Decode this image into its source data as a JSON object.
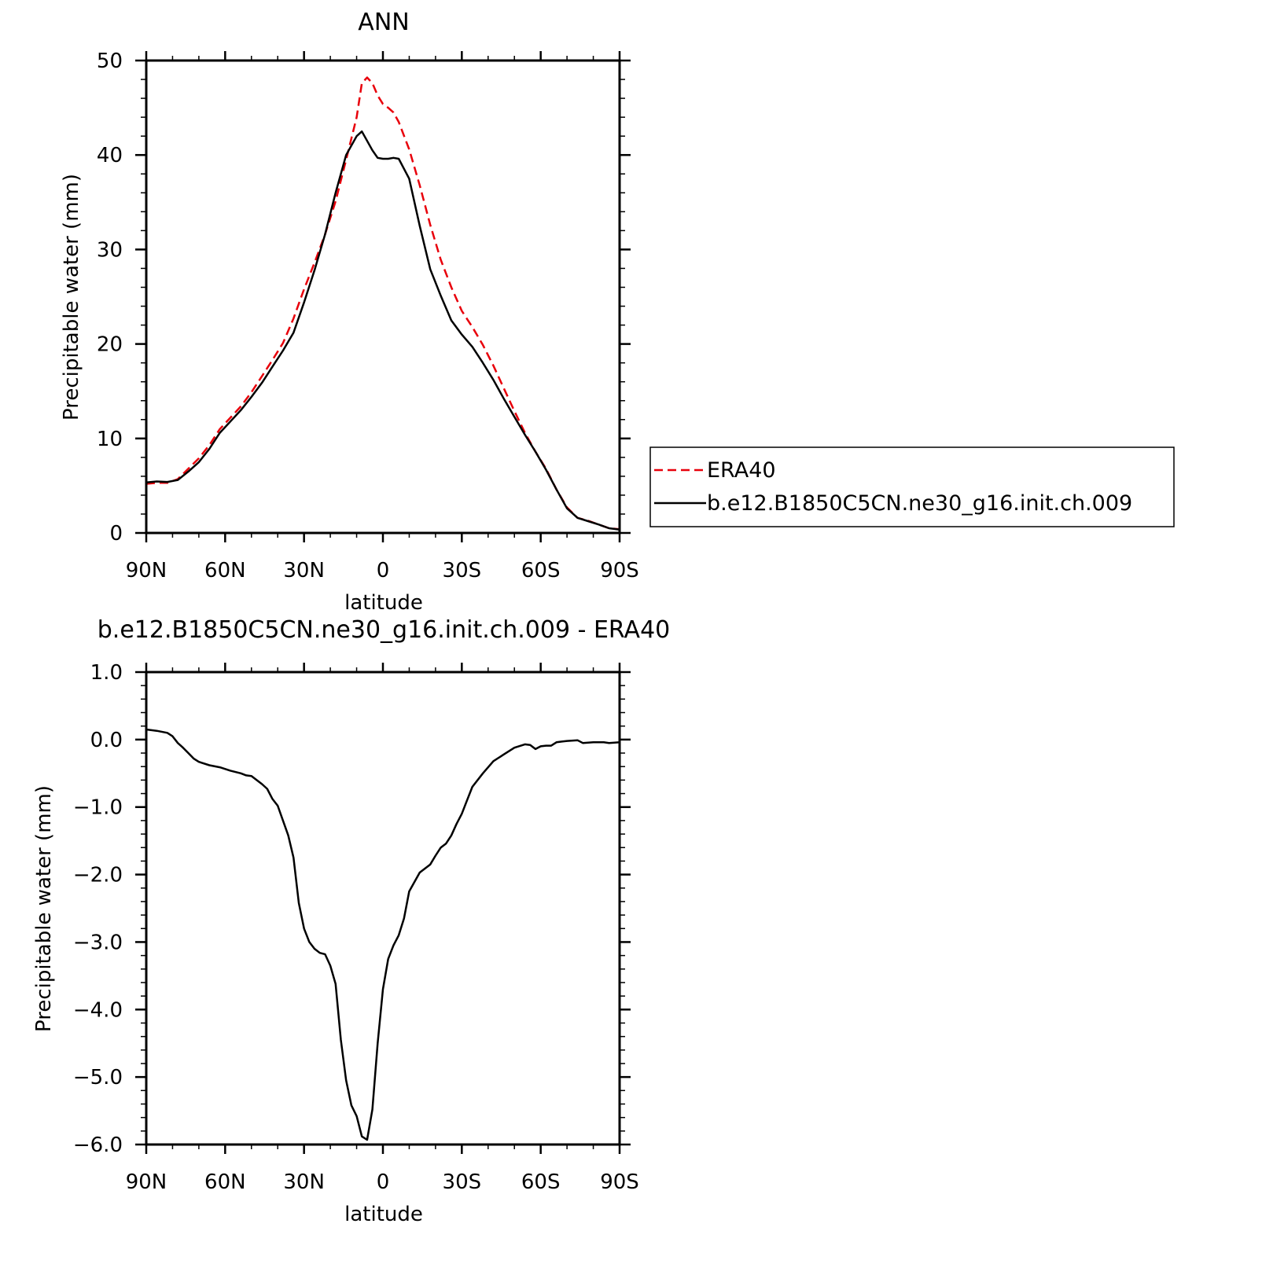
{
  "chart_data": [
    {
      "type": "line",
      "title": "ANN",
      "xlabel": "latitude",
      "ylabel": "Precipitable water (mm)",
      "xlim": [
        90,
        -90
      ],
      "ylim": [
        0,
        50
      ],
      "x_tick_values": [
        90,
        60,
        30,
        0,
        -30,
        -60,
        -90
      ],
      "x_tick_labels": [
        "90N",
        "60N",
        "30N",
        "0",
        "30S",
        "60S",
        "90S"
      ],
      "y_tick_values": [
        0,
        10,
        20,
        30,
        40,
        50
      ],
      "y_tick_labels": [
        "0",
        "10",
        "20",
        "30",
        "40",
        "50"
      ],
      "grid": false,
      "legend_position": "right",
      "series": [
        {
          "name": "ERA40",
          "color": "#e8000b",
          "dash": "dashed",
          "x": [
            90,
            86,
            82,
            78,
            74,
            70,
            66,
            62,
            58,
            54,
            50,
            46,
            42,
            38,
            34,
            30,
            26,
            22,
            18,
            14,
            10,
            8,
            6,
            4,
            2,
            0,
            -2,
            -4,
            -6,
            -10,
            -14,
            -18,
            -22,
            -26,
            -30,
            -34,
            -38,
            -42,
            -46,
            -50,
            -54,
            -58,
            -62,
            -66,
            -70,
            -74,
            -78,
            -82,
            -86,
            -90
          ],
          "values": [
            5.2,
            5.3,
            5.3,
            5.7,
            6.8,
            7.9,
            9.3,
            11.0,
            12.2,
            13.4,
            14.9,
            16.6,
            18.3,
            20.1,
            22.7,
            25.8,
            28.6,
            31.6,
            35.1,
            39.5,
            44.0,
            47.6,
            48.2,
            47.6,
            46.3,
            45.4,
            45.0,
            44.5,
            43.5,
            40.6,
            36.8,
            32.6,
            28.9,
            26.0,
            23.5,
            21.8,
            19.9,
            17.7,
            15.3,
            12.9,
            10.6,
            8.6,
            6.8,
            4.6,
            2.7,
            1.6,
            1.3,
            0.9,
            0.5,
            0.4
          ]
        },
        {
          "name": "b.e12.B1850C5CN.ne30_g16.init.ch.009",
          "color": "#000000",
          "dash": "solid",
          "x": [
            90,
            86,
            82,
            78,
            74,
            70,
            66,
            62,
            58,
            54,
            50,
            46,
            42,
            38,
            34,
            30,
            26,
            22,
            18,
            14,
            10,
            8,
            6,
            4,
            2,
            0,
            -2,
            -4,
            -6,
            -10,
            -14,
            -18,
            -22,
            -26,
            -30,
            -34,
            -38,
            -42,
            -46,
            -50,
            -54,
            -58,
            -62,
            -66,
            -70,
            -74,
            -78,
            -82,
            -86,
            -90
          ],
          "values": [
            5.35,
            5.45,
            5.4,
            5.6,
            6.5,
            7.5,
            8.9,
            10.6,
            11.8,
            13.0,
            14.4,
            15.9,
            17.6,
            19.3,
            21.2,
            24.4,
            27.8,
            31.6,
            36.0,
            40.0,
            42.0,
            42.5,
            41.5,
            40.5,
            39.7,
            39.6,
            39.6,
            39.7,
            39.6,
            37.5,
            32.5,
            27.9,
            25.1,
            22.5,
            21.0,
            19.7,
            18.0,
            16.2,
            14.2,
            12.3,
            10.4,
            8.6,
            6.7,
            4.6,
            2.6,
            1.6,
            1.25,
            0.9,
            0.5,
            0.35
          ]
        }
      ]
    },
    {
      "type": "line",
      "title": "b.e12.B1850C5CN.ne30_g16.init.ch.009 - ERA40",
      "xlabel": "latitude",
      "ylabel": "Precipitable water (mm)",
      "xlim": [
        90,
        -90
      ],
      "ylim": [
        -6.0,
        1.0
      ],
      "x_tick_values": [
        90,
        60,
        30,
        0,
        -30,
        -60,
        -90
      ],
      "x_tick_labels": [
        "90N",
        "60N",
        "30N",
        "0",
        "30S",
        "60S",
        "90S"
      ],
      "y_tick_values": [
        1.0,
        0.0,
        -1.0,
        -2.0,
        -3.0,
        -4.0,
        -5.0,
        -6.0
      ],
      "y_tick_labels": [
        "1.0",
        "0.0",
        "−1.0",
        "−2.0",
        "−3.0",
        "−4.0",
        "−5.0",
        "−6.0"
      ],
      "grid": false,
      "series": [
        {
          "color": "#000000",
          "dash": "solid",
          "x": [
            90,
            86,
            82,
            80,
            78,
            76,
            74,
            72,
            70,
            66,
            62,
            58,
            54,
            52,
            50,
            48,
            46,
            44,
            42,
            40,
            38,
            36,
            34,
            32,
            30,
            28,
            26,
            24,
            22,
            20,
            18,
            16,
            14,
            12,
            10,
            8,
            6,
            4,
            2,
            0,
            -2,
            -4,
            -6,
            -8,
            -10,
            -14,
            -18,
            -20,
            -22,
            -24,
            -26,
            -28,
            -30,
            -32,
            -34,
            -38,
            -42,
            -46,
            -50,
            -54,
            -56,
            -58,
            -60,
            -62,
            -64,
            -66,
            -68,
            -70,
            -74,
            -76,
            -80,
            -84,
            -86,
            -90
          ],
          "values": [
            0.15,
            0.13,
            0.1,
            0.05,
            -0.05,
            -0.12,
            -0.2,
            -0.28,
            -0.33,
            -0.38,
            -0.41,
            -0.46,
            -0.5,
            -0.53,
            -0.54,
            -0.6,
            -0.66,
            -0.73,
            -0.88,
            -0.98,
            -1.2,
            -1.42,
            -1.75,
            -2.42,
            -2.8,
            -3.0,
            -3.1,
            -3.16,
            -3.18,
            -3.35,
            -3.62,
            -4.45,
            -5.05,
            -5.42,
            -5.58,
            -5.88,
            -5.93,
            -5.48,
            -4.5,
            -3.7,
            -3.25,
            -3.05,
            -2.9,
            -2.65,
            -2.25,
            -1.97,
            -1.85,
            -1.72,
            -1.6,
            -1.54,
            -1.42,
            -1.25,
            -1.1,
            -0.9,
            -0.7,
            -0.5,
            -0.32,
            -0.22,
            -0.12,
            -0.07,
            -0.08,
            -0.14,
            -0.1,
            -0.09,
            -0.09,
            -0.04,
            -0.03,
            -0.02,
            -0.01,
            -0.05,
            -0.04,
            -0.04,
            -0.05,
            -0.04
          ]
        }
      ]
    }
  ]
}
